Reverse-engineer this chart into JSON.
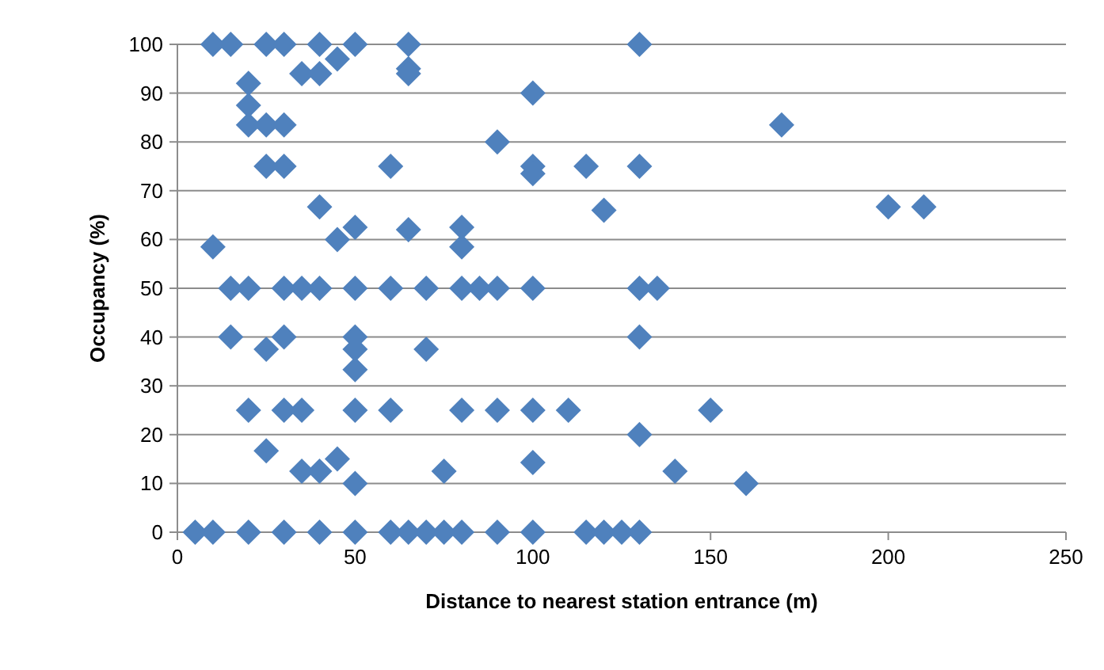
{
  "chart_data": {
    "type": "scatter",
    "xlabel": "Distance to nearest station entrance (m)",
    "ylabel": "Occupancy (%)",
    "xlim": [
      0,
      250
    ],
    "xticks": [
      0,
      50,
      100,
      150,
      200,
      250
    ],
    "ylim": [
      0,
      100
    ],
    "yticks": [
      0,
      10,
      20,
      30,
      40,
      50,
      60,
      70,
      80,
      90,
      100
    ],
    "grid": "y",
    "marker": "diamond",
    "series": [
      {
        "color": "#4f81bd",
        "x": [
          10,
          15,
          25,
          30,
          40,
          50,
          65,
          130,
          45,
          35,
          40,
          65,
          65,
          20,
          20,
          20,
          25,
          30,
          100,
          170,
          90,
          25,
          30,
          60,
          100,
          115,
          130,
          100,
          40,
          200,
          210,
          120,
          50,
          80,
          65,
          45,
          10,
          80,
          15,
          20,
          30,
          35,
          40,
          50,
          60,
          70,
          80,
          85,
          90,
          100,
          130,
          135,
          15,
          30,
          50,
          130,
          25,
          50,
          70,
          50,
          20,
          30,
          35,
          50,
          60,
          80,
          90,
          100,
          110,
          150,
          130,
          25,
          45,
          35,
          40,
          75,
          140,
          100,
          50,
          160,
          5,
          10,
          20,
          30,
          40,
          50,
          60,
          65,
          70,
          75,
          80,
          90,
          100,
          115,
          120,
          125,
          130
        ],
        "values": [
          100,
          100,
          100,
          100,
          100,
          100,
          100,
          100,
          97,
          94,
          94,
          95,
          94,
          92,
          87.5,
          83.5,
          83.5,
          83.5,
          90,
          83.5,
          80,
          75,
          75,
          75,
          75,
          75,
          75,
          73.5,
          66.7,
          66.7,
          66.7,
          66,
          62.5,
          62.5,
          62,
          60,
          58.5,
          58.5,
          50,
          50,
          50,
          50,
          50,
          50,
          50,
          50,
          50,
          50,
          50,
          50,
          50,
          50,
          40,
          40,
          40,
          40,
          37.5,
          37.5,
          37.5,
          33.3,
          25,
          25,
          25,
          25,
          25,
          25,
          25,
          25,
          25,
          25,
          20,
          16.7,
          15,
          12.5,
          12.5,
          12.5,
          12.5,
          14.3,
          10,
          10,
          0,
          0,
          0,
          0,
          0,
          0,
          0,
          0,
          0,
          0,
          0,
          0,
          0,
          0,
          0,
          0,
          0
        ]
      }
    ]
  }
}
